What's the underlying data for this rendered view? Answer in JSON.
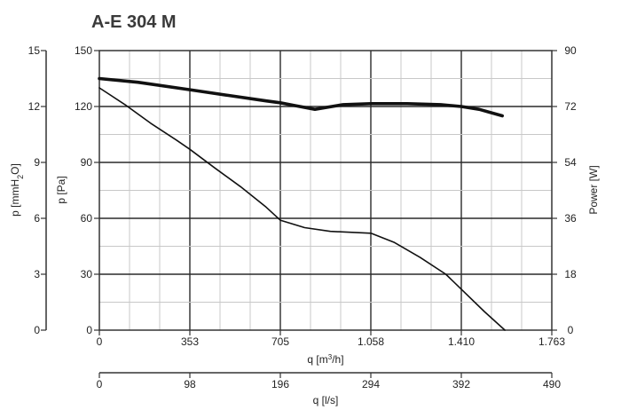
{
  "chart_data": {
    "type": "line",
    "title": "A-E 304 M",
    "axes": {
      "left_outer": {
        "label_main": "p [mmH",
        "label_sub": "2",
        "label_end": "O]",
        "ticks": [
          "0",
          "3",
          "6",
          "9",
          "12",
          "15"
        ],
        "range": [
          0,
          15
        ]
      },
      "left_inner": {
        "label": "p [Pa]",
        "ticks": [
          "0",
          "30",
          "60",
          "90",
          "120",
          "150"
        ],
        "range": [
          0,
          150
        ]
      },
      "right": {
        "label": "Power [W]",
        "ticks": [
          "0",
          "18",
          "36",
          "54",
          "72",
          "90"
        ],
        "range": [
          0,
          90
        ]
      },
      "x_flow_m3h": {
        "label_main": "q [m",
        "label_sup": "3",
        "label_end": "/h]",
        "ticks": [
          "0",
          "353",
          "705",
          "1.058",
          "1.410",
          "1.763"
        ],
        "range": [
          0,
          1763
        ]
      },
      "x_flow_ls": {
        "label": "q [l/s]",
        "ticks": [
          "0",
          "98",
          "196",
          "294",
          "392",
          "490"
        ],
        "range": [
          0,
          490
        ]
      }
    },
    "grid": true,
    "series": [
      {
        "role": "pressure",
        "axis": "p_Pa",
        "x": [
          0,
          100,
          200,
          300,
          353,
          450,
          550,
          650,
          705,
          800,
          900,
          1058,
          1150,
          1250,
          1350,
          1410,
          1500,
          1580
        ],
        "y": [
          130,
          121,
          111,
          102,
          97,
          87,
          77,
          66,
          59,
          55,
          53,
          52,
          47,
          39,
          30,
          22,
          10,
          0
        ]
      },
      {
        "role": "power",
        "axis": "power_W",
        "x": [
          0,
          150,
          353,
          500,
          650,
          705,
          760,
          840,
          950,
          1058,
          1200,
          1330,
          1410,
          1480,
          1570
        ],
        "y": [
          81,
          79.8,
          77.4,
          75.6,
          73.8,
          73.2,
          72.3,
          71.1,
          72.6,
          72.9,
          72.9,
          72.6,
          72,
          71.1,
          69
        ]
      }
    ]
  }
}
